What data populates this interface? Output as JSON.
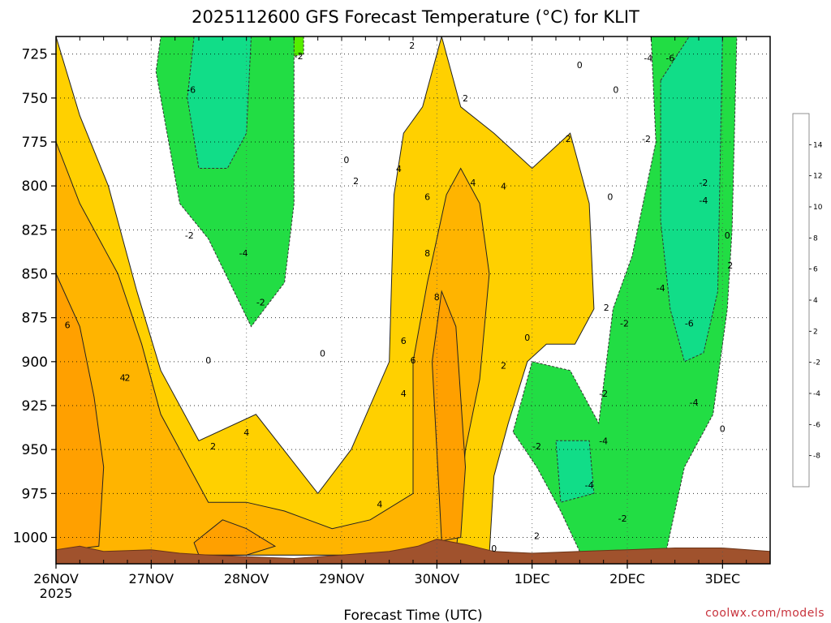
{
  "chart_data": {
    "type": "heatmap",
    "title": "2025112600 GFS Forecast Temperature (°C) for KLIT",
    "xlabel": "Forecast Time (UTC)",
    "ylabel": "",
    "credit": "coolwx.com/models",
    "x_ticks": [
      {
        "day": 0,
        "label": "26NOV",
        "sublabel": "2025"
      },
      {
        "day": 1,
        "label": "27NOV"
      },
      {
        "day": 2,
        "label": "28NOV"
      },
      {
        "day": 3,
        "label": "29NOV"
      },
      {
        "day": 4,
        "label": "30NOV"
      },
      {
        "day": 5,
        "label": "1DEC"
      },
      {
        "day": 6,
        "label": "2DEC"
      },
      {
        "day": 7,
        "label": "3DEC"
      }
    ],
    "xlim": [
      0,
      7.5
    ],
    "y_ticks": [
      "725",
      "750",
      "775",
      "800",
      "825",
      "850",
      "875",
      "900",
      "925",
      "950",
      "975",
      "1000"
    ],
    "ylim": [
      1015,
      715
    ],
    "colorbar_ticks": [
      "14",
      "12",
      "10",
      "8",
      "6",
      "4",
      "2",
      "-2",
      "-4",
      "-6",
      "-8"
    ],
    "colorbar_bins": [
      {
        "range": [
          14,
          16
        ],
        "color": "#ff4b00"
      },
      {
        "range": [
          12,
          14
        ],
        "color": "#ff6a00"
      },
      {
        "range": [
          10,
          12
        ],
        "color": "#ff8a00"
      },
      {
        "range": [
          8,
          10
        ],
        "color": "#ffa000"
      },
      {
        "range": [
          6,
          8
        ],
        "color": "#ffb400"
      },
      {
        "range": [
          4,
          6
        ],
        "color": "#ffd000"
      },
      {
        "range": [
          2,
          4
        ],
        "color": "#ffff00"
      },
      {
        "range": [
          -2,
          2
        ],
        "color": "#ffffff"
      },
      {
        "range": [
          -4,
          -2
        ],
        "color": "#55ee00"
      },
      {
        "range": [
          -6,
          -4
        ],
        "color": "#22dd44"
      },
      {
        "range": [
          -8,
          -6
        ],
        "color": "#11dd88"
      },
      {
        "range": [
          -10,
          -8
        ],
        "color": "#00ffaa"
      }
    ],
    "surface_pressure": [
      {
        "day": 0.0,
        "p": 1007
      },
      {
        "day": 0.25,
        "p": 1005
      },
      {
        "day": 0.5,
        "p": 1008
      },
      {
        "day": 1.0,
        "p": 1007
      },
      {
        "day": 1.3,
        "p": 1009
      },
      {
        "day": 1.6,
        "p": 1010
      },
      {
        "day": 2.0,
        "p": 1011
      },
      {
        "day": 2.5,
        "p": 1012
      },
      {
        "day": 3.0,
        "p": 1010
      },
      {
        "day": 3.5,
        "p": 1008
      },
      {
        "day": 3.8,
        "p": 1005
      },
      {
        "day": 4.0,
        "p": 1001
      },
      {
        "day": 4.3,
        "p": 1004
      },
      {
        "day": 4.6,
        "p": 1008
      },
      {
        "day": 5.0,
        "p": 1009
      },
      {
        "day": 5.5,
        "p": 1008
      },
      {
        "day": 6.0,
        "p": 1007
      },
      {
        "day": 6.5,
        "p": 1006
      },
      {
        "day": 7.0,
        "p": 1006
      },
      {
        "day": 7.5,
        "p": 1008
      }
    ],
    "regions": [
      {
        "name": "cold-pool-early",
        "value": -4,
        "poly": [
          [
            1.1,
            715
          ],
          [
            2.5,
            715
          ],
          [
            2.5,
            810
          ],
          [
            2.4,
            855
          ],
          [
            2.05,
            880
          ],
          [
            1.6,
            830
          ],
          [
            1.3,
            810
          ],
          [
            1.05,
            735
          ]
        ]
      },
      {
        "name": "cold-core-early",
        "value": -6,
        "poly": [
          [
            1.45,
            715
          ],
          [
            2.05,
            715
          ],
          [
            2.0,
            770
          ],
          [
            1.8,
            790
          ],
          [
            1.5,
            790
          ],
          [
            1.38,
            750
          ]
        ]
      },
      {
        "name": "cold-patch-small",
        "value": -2,
        "poly": [
          [
            2.3,
            715
          ],
          [
            2.6,
            715
          ],
          [
            2.6,
            725
          ],
          [
            2.35,
            728
          ]
        ]
      },
      {
        "name": "cold-pool-late",
        "value": -4,
        "poly": [
          [
            4.8,
            940
          ],
          [
            5.0,
            900
          ],
          [
            5.4,
            905
          ],
          [
            5.7,
            935
          ],
          [
            5.85,
            870
          ],
          [
            6.05,
            840
          ],
          [
            6.3,
            775
          ],
          [
            6.25,
            715
          ],
          [
            7.15,
            715
          ],
          [
            7.1,
            825
          ],
          [
            7.05,
            870
          ],
          [
            6.9,
            930
          ],
          [
            6.6,
            960
          ],
          [
            6.4,
            1010
          ],
          [
            5.5,
            1008
          ],
          [
            5.3,
            985
          ],
          [
            5.05,
            960
          ]
        ]
      },
      {
        "name": "cold-core-late",
        "value": -6,
        "poly": [
          [
            6.35,
            740
          ],
          [
            6.65,
            715
          ],
          [
            7.0,
            715
          ],
          [
            6.95,
            860
          ],
          [
            6.8,
            895
          ],
          [
            6.6,
            900
          ],
          [
            6.45,
            870
          ],
          [
            6.35,
            820
          ]
        ]
      },
      {
        "name": "cold-patch-south",
        "value": -6,
        "poly": [
          [
            5.25,
            945
          ],
          [
            5.6,
            945
          ],
          [
            5.65,
            975
          ],
          [
            5.3,
            980
          ]
        ]
      },
      {
        "name": "warm-low-level",
        "value": 4,
        "poly": [
          [
            0.0,
            715
          ],
          [
            0.25,
            760
          ],
          [
            0.55,
            800
          ],
          [
            0.85,
            860
          ],
          [
            1.1,
            905
          ],
          [
            1.5,
            945
          ],
          [
            2.1,
            930
          ],
          [
            2.75,
            975
          ],
          [
            3.1,
            950
          ],
          [
            3.5,
            900
          ],
          [
            3.55,
            805
          ],
          [
            3.65,
            770
          ],
          [
            3.85,
            755
          ],
          [
            4.05,
            715
          ],
          [
            4.25,
            755
          ],
          [
            4.6,
            770
          ],
          [
            5.0,
            790
          ],
          [
            5.4,
            770
          ],
          [
            5.6,
            810
          ],
          [
            5.65,
            870
          ],
          [
            5.45,
            890
          ],
          [
            5.15,
            890
          ],
          [
            4.95,
            900
          ],
          [
            4.75,
            935
          ],
          [
            4.6,
            965
          ],
          [
            4.55,
            1010
          ],
          [
            0.0,
            1010
          ]
        ]
      },
      {
        "name": "warm-mid",
        "value": 6,
        "poly": [
          [
            0.0,
            775
          ],
          [
            0.25,
            810
          ],
          [
            0.65,
            850
          ],
          [
            0.9,
            890
          ],
          [
            1.1,
            930
          ],
          [
            1.6,
            980
          ],
          [
            2.0,
            980
          ],
          [
            2.4,
            985
          ],
          [
            2.9,
            995
          ],
          [
            3.3,
            990
          ],
          [
            3.75,
            975
          ],
          [
            3.75,
            900
          ],
          [
            3.9,
            855
          ],
          [
            4.1,
            805
          ],
          [
            4.25,
            790
          ],
          [
            4.45,
            810
          ],
          [
            4.55,
            850
          ],
          [
            4.45,
            910
          ],
          [
            4.3,
            950
          ],
          [
            4.2,
            1010
          ],
          [
            0.0,
            1010
          ]
        ]
      },
      {
        "name": "warm-peak",
        "value": 8,
        "poly": [
          [
            0.0,
            850
          ],
          [
            0.25,
            880
          ],
          [
            0.4,
            920
          ],
          [
            0.5,
            960
          ],
          [
            0.45,
            1005
          ],
          [
            0.0,
            1008
          ]
        ]
      },
      {
        "name": "warm-peak-secondary",
        "value": 8,
        "poly": [
          [
            1.45,
            1003
          ],
          [
            1.75,
            990
          ],
          [
            2.0,
            995
          ],
          [
            2.3,
            1005
          ],
          [
            2.0,
            1010
          ],
          [
            1.5,
            1010
          ]
        ]
      },
      {
        "name": "warm-spine",
        "value": 8,
        "poly": [
          [
            3.95,
            900
          ],
          [
            4.05,
            860
          ],
          [
            4.2,
            880
          ],
          [
            4.3,
            960
          ],
          [
            4.25,
            1000
          ],
          [
            4.05,
            1002
          ]
        ]
      }
    ],
    "contour_labels": [
      {
        "text": "-6",
        "day": 1.42,
        "p": 747
      },
      {
        "text": "-6",
        "day": 6.45,
        "p": 729
      },
      {
        "text": "-4",
        "day": 6.22,
        "p": 729
      },
      {
        "text": "-2",
        "day": 2.55,
        "p": 728
      },
      {
        "text": "-2",
        "day": 1.4,
        "p": 830
      },
      {
        "text": "-4",
        "day": 1.97,
        "p": 840
      },
      {
        "text": "-2",
        "day": 2.15,
        "p": 868
      },
      {
        "text": "-2",
        "day": 6.2,
        "p": 775
      },
      {
        "text": "-2",
        "day": 6.8,
        "p": 800
      },
      {
        "text": "-4",
        "day": 6.8,
        "p": 810
      },
      {
        "text": "-4",
        "day": 6.35,
        "p": 860
      },
      {
        "text": "-6",
        "day": 6.65,
        "p": 880
      },
      {
        "text": "-2",
        "day": 5.97,
        "p": 880
      },
      {
        "text": "-2",
        "day": 5.75,
        "p": 920
      },
      {
        "text": "-4",
        "day": 6.7,
        "p": 925
      },
      {
        "text": "-2",
        "day": 5.05,
        "p": 950
      },
      {
        "text": "-4",
        "day": 5.75,
        "p": 947
      },
      {
        "text": "-4",
        "day": 5.6,
        "p": 972
      },
      {
        "text": "-2",
        "day": 5.95,
        "p": 991
      },
      {
        "text": "0",
        "day": 3.05,
        "p": 787
      },
      {
        "text": "0",
        "day": 5.5,
        "p": 733
      },
      {
        "text": "0",
        "day": 5.88,
        "p": 747
      },
      {
        "text": "0",
        "day": 5.82,
        "p": 808
      },
      {
        "text": "0",
        "day": 7.05,
        "p": 830
      },
      {
        "text": "0",
        "day": 2.8,
        "p": 897
      },
      {
        "text": "0",
        "day": 1.6,
        "p": 901
      },
      {
        "text": "0",
        "day": 4.95,
        "p": 888
      },
      {
        "text": "0",
        "day": 7.0,
        "p": 940
      },
      {
        "text": "0",
        "day": 4.6,
        "p": 1008
      },
      {
        "text": "2",
        "day": 3.74,
        "p": 722
      },
      {
        "text": "2",
        "day": 4.3,
        "p": 752
      },
      {
        "text": "2",
        "day": 5.38,
        "p": 775
      },
      {
        "text": "2",
        "day": 3.15,
        "p": 799
      },
      {
        "text": "2",
        "day": 7.08,
        "p": 847
      },
      {
        "text": "2",
        "day": 5.78,
        "p": 871
      },
      {
        "text": "2",
        "day": 4.7,
        "p": 904
      },
      {
        "text": "2",
        "day": 1.65,
        "p": 950
      },
      {
        "text": "2",
        "day": 5.05,
        "p": 1001
      },
      {
        "text": "4",
        "day": 3.6,
        "p": 792
      },
      {
        "text": "4",
        "day": 4.38,
        "p": 800
      },
      {
        "text": "4",
        "day": 4.7,
        "p": 802
      },
      {
        "text": "4",
        "day": 0.7,
        "p": 911
      },
      {
        "text": "2",
        "day": 0.75,
        "p": 911
      },
      {
        "text": "4",
        "day": 2.0,
        "p": 942
      },
      {
        "text": "4",
        "day": 3.4,
        "p": 983
      },
      {
        "text": "4",
        "day": 3.65,
        "p": 920
      },
      {
        "text": "6",
        "day": 3.9,
        "p": 808
      },
      {
        "text": "6",
        "day": 0.12,
        "p": 881
      },
      {
        "text": "6",
        "day": 3.65,
        "p": 890
      },
      {
        "text": "6",
        "day": 3.75,
        "p": 901
      },
      {
        "text": "8",
        "day": 3.9,
        "p": 840
      },
      {
        "text": "8",
        "day": 4.0,
        "p": 865
      }
    ]
  }
}
